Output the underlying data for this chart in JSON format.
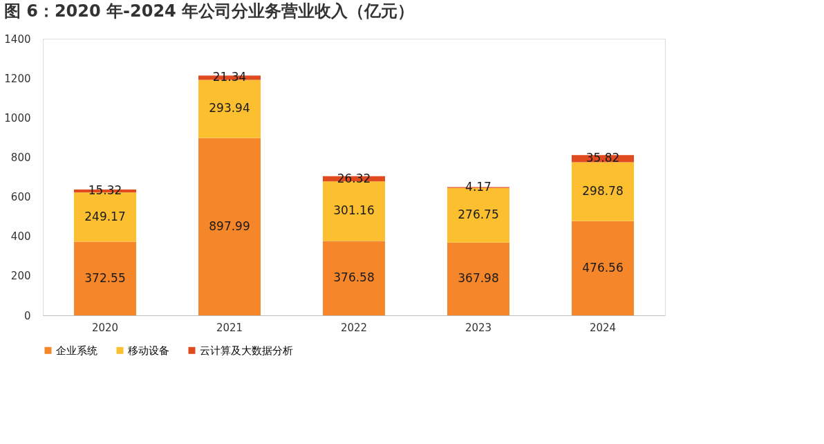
{
  "chart_data": {
    "type": "bar",
    "title": "图 6：2020 年-2024 年公司分业务营业收入（亿元）",
    "categories": [
      "2020",
      "2021",
      "2022",
      "2023",
      "2024"
    ],
    "series": [
      {
        "name": "企业系统",
        "color": "#f5862a",
        "values": [
          372.55,
          897.99,
          376.58,
          367.98,
          476.56
        ]
      },
      {
        "name": "移动设备",
        "color": "#fbbf2f",
        "values": [
          249.17,
          293.94,
          301.16,
          276.75,
          298.78
        ]
      },
      {
        "name": "云计算及大数据分析",
        "color": "#e04a1f",
        "values": [
          15.32,
          21.34,
          26.32,
          4.17,
          35.82
        ]
      }
    ],
    "stacked": true,
    "data_labels": true,
    "ylim": [
      0,
      1400
    ],
    "yticks": [
      0,
      200,
      400,
      600,
      800,
      1000,
      1200,
      1400
    ],
    "grid": false,
    "legend": "bottom"
  }
}
